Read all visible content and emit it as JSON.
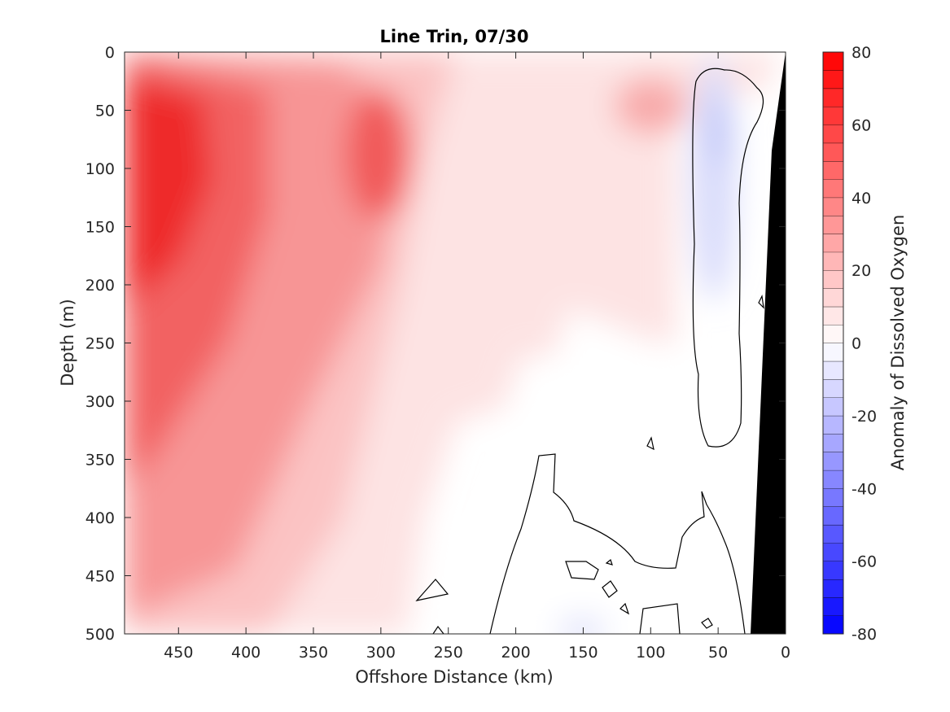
{
  "chart_data": {
    "type": "contour",
    "title": "Line Trin, 07/30",
    "xlabel": "Offshore Distance (km)",
    "ylabel": "Depth (m)",
    "colorbar_label": "Anomaly of Dissolved Oxygen",
    "x_range": [
      490,
      0
    ],
    "y_range": [
      0,
      500
    ],
    "x_ticks": [
      450,
      400,
      350,
      300,
      250,
      200,
      150,
      100,
      50,
      0
    ],
    "y_ticks": [
      0,
      50,
      100,
      150,
      200,
      250,
      300,
      350,
      400,
      450,
      500
    ],
    "colorbar_range": [
      -80,
      80
    ],
    "colorbar_ticks": [
      80,
      60,
      40,
      20,
      0,
      -20,
      -40,
      -60,
      -80
    ],
    "contour_interval": 5,
    "colormap": {
      "negative": "#0000ff",
      "zero": "#ffffff",
      "positive": "#ff0000"
    },
    "features": [
      {
        "x": 470,
        "y": 110,
        "value": 80
      },
      {
        "x": 440,
        "y": 230,
        "value": 65
      },
      {
        "x": 300,
        "y": 90,
        "value": 55
      },
      {
        "x": 100,
        "y": 60,
        "value": 20
      },
      {
        "x": 50,
        "y": 80,
        "value": -15
      },
      {
        "x": 150,
        "y": 490,
        "value": -5
      }
    ]
  }
}
